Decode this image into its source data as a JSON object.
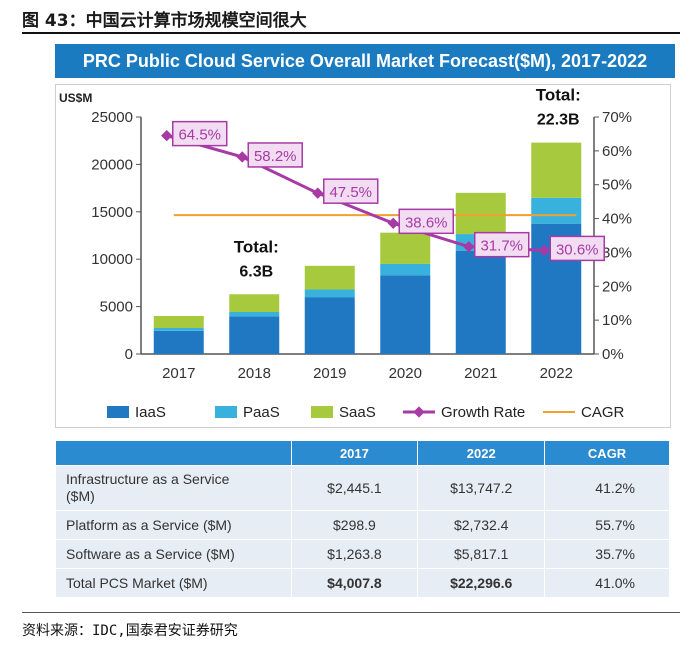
{
  "figure_caption": "图 43：中国云计算市场规模空间很大",
  "source_note": "资料来源：IDC,国泰君安证券研究",
  "colors": {
    "iaas": "#1f78c1",
    "paas": "#38b2dc",
    "saas": "#a6c93e",
    "growth": "#a83aa6",
    "cagr": "#f0a030",
    "banner": "#1b7bc0",
    "table_header": "#2a8bd0",
    "table_cell": "#e6edf5"
  },
  "chart_data": {
    "type": "bar",
    "stacked": true,
    "title": "PRC Public Cloud Service Overall Market Forecast($M), 2017-2022",
    "ylabel": "US$M",
    "ylim": [
      0,
      25000
    ],
    "y_ticks": [
      "0",
      "5000",
      "10000",
      "15000",
      "20000",
      "25000"
    ],
    "y2lim": [
      0,
      70
    ],
    "y2_ticks": [
      "0%",
      "10%",
      "20%",
      "30%",
      "40%",
      "50%",
      "60%",
      "70%"
    ],
    "categories": [
      "2017",
      "2018",
      "2019",
      "2020",
      "2021",
      "2022"
    ],
    "series": [
      {
        "name": "IaaS",
        "values": [
          2445,
          3950,
          6000,
          8300,
          10900,
          13747
        ]
      },
      {
        "name": "PaaS",
        "values": [
          299,
          480,
          800,
          1200,
          1750,
          2732
        ]
      },
      {
        "name": "SaaS",
        "values": [
          1264,
          1870,
          2500,
          3300,
          4350,
          5817
        ]
      }
    ],
    "growth_rate": {
      "name": "Growth Rate",
      "values": [
        64.5,
        58.2,
        47.5,
        38.6,
        31.7,
        30.6
      ],
      "labels": [
        "64.5%",
        "58.2%",
        "47.5%",
        "38.6%",
        "31.7%",
        "30.6%"
      ]
    },
    "cagr_line": {
      "name": "CAGR",
      "value": 41.0
    },
    "annotations": [
      {
        "title": "Total:",
        "value": "6.3B",
        "category": "2018"
      },
      {
        "title": "Total:",
        "value": "22.3B",
        "category": "2022"
      }
    ],
    "legend": [
      "IaaS",
      "PaaS",
      "SaaS",
      "Growth Rate",
      "CAGR"
    ],
    "legend_position": "bottom"
  },
  "table": {
    "header": [
      "",
      "2017",
      "2022",
      "CAGR"
    ],
    "rows": [
      {
        "label_line1": "Infrastructure as a Service",
        "label_line2": "($M)",
        "v2017": "$2,445.1",
        "v2022": "$13,747.2",
        "cagr": "41.2%"
      },
      {
        "label": "Platform as a Service ($M)",
        "v2017": "$298.9",
        "v2022": "$2,732.4",
        "cagr": "55.7%"
      },
      {
        "label": "Software as a Service ($M)",
        "v2017": "$1,263.8",
        "v2022": "$5,817.1",
        "cagr": "35.7%"
      },
      {
        "label": "Total PCS Market ($M)",
        "v2017": "$4,007.8",
        "v2022": "$22,296.6",
        "cagr": "41.0%"
      }
    ]
  }
}
